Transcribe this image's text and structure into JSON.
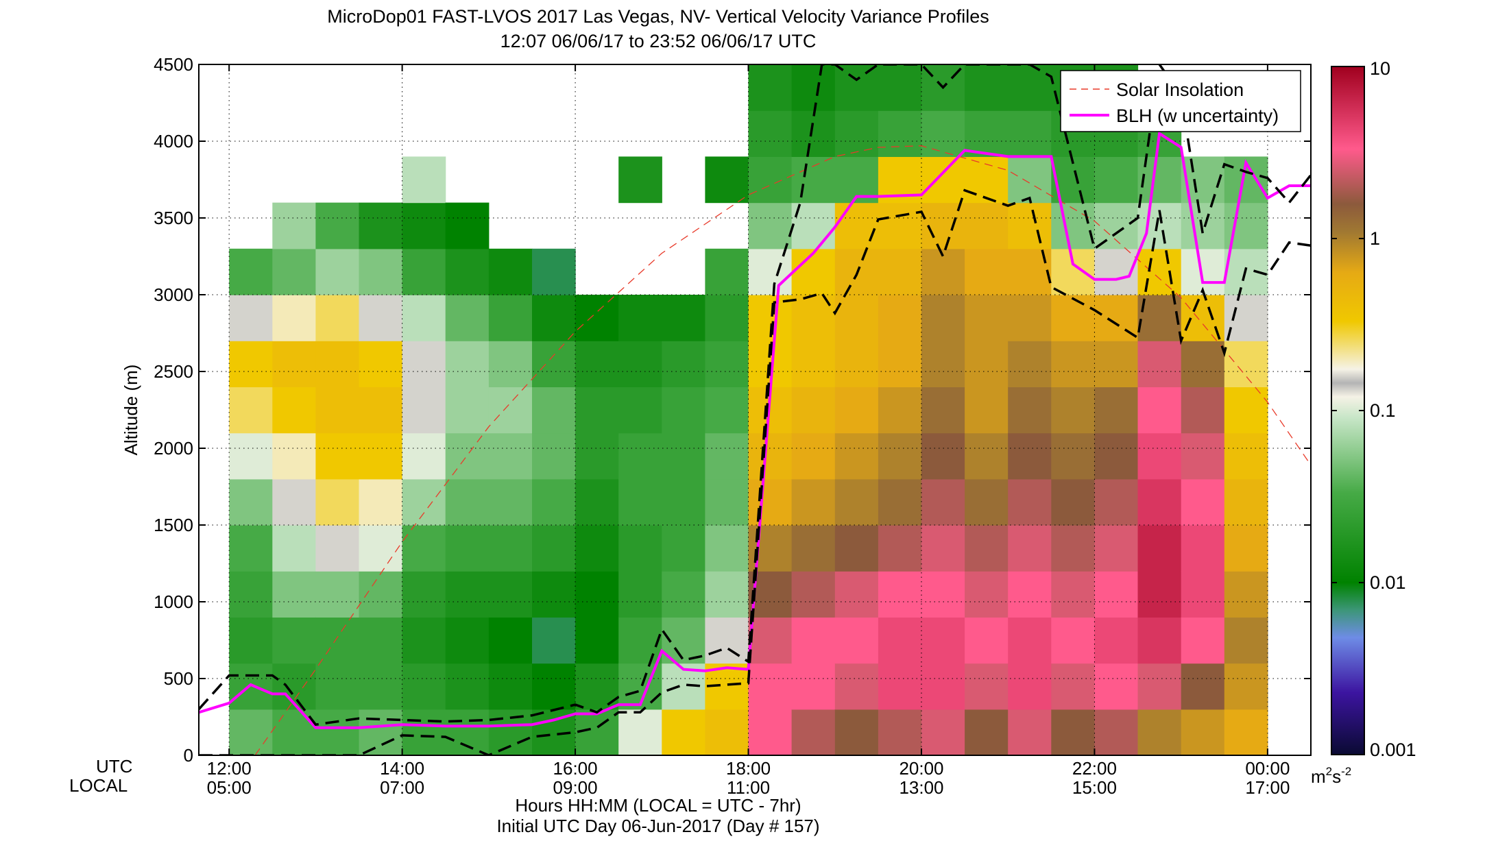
{
  "title": {
    "line1": "MicroDop01 FAST-LVOS 2017 Las Vegas, NV- Vertical Velocity Variance Profiles",
    "line2": "12:07 06/06/17 to 23:52 06/06/17  UTC"
  },
  "xaxis": {
    "row_label_utc": "UTC",
    "row_label_local": "LOCAL",
    "label": "Hours HH:MM  (LOCAL = UTC - 7hr)",
    "sublabel": "Initial UTC Day 06-Jun-2017 (Day # 157)"
  },
  "colorbar": {
    "scale": "log",
    "range": [
      0.001,
      10
    ],
    "ticks": [
      "10",
      "1",
      "0.1",
      "0.01",
      "0.001"
    ],
    "unit": "m",
    "unit_sup": "2",
    "unit_s": "s",
    "unit_s_sup": "-2"
  },
  "legend": {
    "placement": "top-right",
    "solar": "Solar Insolation",
    "blh": "BLH (w uncertainty)"
  },
  "chart_data": {
    "type": "heatmap",
    "xlim_utc_hours": [
      11.65,
      24.5
    ],
    "ylim": [
      0,
      4500
    ],
    "ylabel": "Altitude (m)",
    "yticks": [
      "0",
      "500",
      "1000",
      "1500",
      "2000",
      "2500",
      "3000",
      "3500",
      "4000",
      "4500"
    ],
    "xticks_utc": [
      "12:00",
      "14:00",
      "16:00",
      "18:00",
      "20:00",
      "22:00",
      "00:00"
    ],
    "xticks_local": [
      "05:00",
      "07:00",
      "09:00",
      "11:00",
      "13:00",
      "15:00",
      "17:00"
    ],
    "grid": true,
    "log10_variance_profiles": {
      "layers_m": [
        150,
        450,
        750,
        1050,
        1350,
        1650,
        1950,
        2250,
        2550,
        2850,
        3150,
        3450,
        3750,
        4050,
        4350
      ],
      "profiles": [
        {
          "utc": "12:15",
          "values": [
            -1.4,
            -1.6,
            -1.7,
            -1.6,
            -1.5,
            -1.3,
            -1.0,
            -0.6,
            -0.5,
            -0.8,
            -1.5,
            null,
            null,
            null,
            null
          ]
        },
        {
          "utc": "12:45",
          "values": [
            -1.5,
            -1.7,
            -1.6,
            -1.3,
            -1.1,
            -0.9,
            -0.7,
            -0.5,
            -0.4,
            -0.7,
            -1.4,
            -1.2,
            null,
            null,
            null
          ]
        },
        {
          "utc": "13:15",
          "values": [
            -1.5,
            -1.6,
            -1.6,
            -1.3,
            -0.9,
            -0.6,
            -0.5,
            -0.4,
            -0.4,
            -0.6,
            -1.2,
            -1.5,
            null,
            null,
            null
          ]
        },
        {
          "utc": "13:45",
          "values": [
            -1.4,
            -1.6,
            -1.6,
            -1.4,
            -1.0,
            -0.7,
            -0.5,
            -0.4,
            -0.5,
            -0.8,
            -1.3,
            -1.8,
            null,
            null,
            null
          ]
        },
        {
          "utc": "14:15",
          "values": [
            -1.6,
            -1.7,
            -1.8,
            -1.7,
            -1.5,
            -1.2,
            -1.0,
            -0.8,
            -0.8,
            -1.1,
            -1.6,
            -1.9,
            -1.1,
            null,
            null
          ]
        },
        {
          "utc": "14:45",
          "values": [
            -1.6,
            -1.8,
            -1.9,
            -1.8,
            -1.6,
            -1.4,
            -1.3,
            -1.2,
            -1.2,
            -1.4,
            -1.8,
            -2.0,
            null,
            null,
            null
          ]
        },
        {
          "utc": "15:15",
          "values": [
            -1.7,
            -1.9,
            -2.0,
            -1.8,
            -1.6,
            -1.4,
            -1.3,
            -1.2,
            -1.3,
            -1.6,
            -1.9,
            null,
            null,
            null,
            null
          ]
        },
        {
          "utc": "15:45",
          "values": [
            -1.8,
            -2.0,
            -2.1,
            -1.9,
            -1.7,
            -1.5,
            -1.4,
            -1.4,
            -1.6,
            -1.9,
            -2.1,
            null,
            null,
            null,
            null
          ]
        },
        {
          "utc": "16:15",
          "values": [
            -1.6,
            -1.8,
            -2.0,
            -2.0,
            -1.9,
            -1.8,
            -1.7,
            -1.7,
            -1.8,
            -2.0,
            null,
            null,
            null,
            null,
            null
          ]
        },
        {
          "utc": "16:45",
          "values": [
            -1.0,
            -1.5,
            -1.6,
            -1.7,
            -1.7,
            -1.6,
            -1.6,
            -1.7,
            -1.8,
            -1.9,
            null,
            null,
            -1.8,
            null,
            null
          ]
        },
        {
          "utc": "17:15",
          "values": [
            -0.5,
            -1.1,
            -1.4,
            -1.5,
            -1.6,
            -1.6,
            -1.6,
            -1.6,
            -1.7,
            -1.9,
            null,
            null,
            null,
            null,
            null
          ]
        },
        {
          "utc": "17:45",
          "values": [
            -0.4,
            -0.5,
            -0.9,
            -1.2,
            -1.3,
            -1.4,
            -1.4,
            -1.5,
            -1.6,
            -1.7,
            -1.6,
            null,
            -1.9,
            null,
            null
          ]
        },
        {
          "utc": "18:15",
          "values": [
            0.5,
            0.5,
            0.4,
            0.2,
            0.0,
            -0.2,
            -0.3,
            -0.4,
            -0.5,
            -0.5,
            -1.0,
            -1.3,
            -1.6,
            -1.7,
            -1.8
          ]
        },
        {
          "utc": "18:45",
          "values": [
            0.3,
            0.5,
            0.5,
            0.3,
            0.1,
            -0.1,
            -0.2,
            -0.3,
            -0.4,
            -0.4,
            -0.5,
            -1.1,
            -1.5,
            -1.8,
            -1.9
          ]
        },
        {
          "utc": "19:15",
          "values": [
            0.2,
            0.4,
            0.5,
            0.4,
            0.2,
            0.0,
            -0.1,
            -0.2,
            -0.3,
            -0.3,
            -0.3,
            -0.4,
            -1.5,
            -1.7,
            -1.8
          ]
        },
        {
          "utc": "19:45",
          "values": [
            0.3,
            0.6,
            0.6,
            0.5,
            0.3,
            0.1,
            0.0,
            -0.1,
            -0.2,
            -0.2,
            -0.3,
            -0.4,
            -0.5,
            -1.6,
            -1.8
          ]
        },
        {
          "utc": "20:15",
          "values": [
            0.4,
            0.6,
            0.6,
            0.5,
            0.4,
            0.3,
            0.2,
            0.1,
            0.0,
            0.0,
            -0.1,
            -0.3,
            -0.5,
            -1.5,
            -1.7
          ]
        },
        {
          "utc": "20:45",
          "values": [
            0.2,
            0.4,
            0.5,
            0.4,
            0.3,
            0.1,
            0.0,
            -0.1,
            -0.1,
            -0.1,
            -0.2,
            -0.3,
            -0.5,
            -1.6,
            -1.8
          ]
        },
        {
          "utc": "21:15",
          "values": [
            0.4,
            0.6,
            0.6,
            0.5,
            0.4,
            0.3,
            0.2,
            0.1,
            0.0,
            -0.1,
            -0.2,
            -0.4,
            -1.3,
            -1.6,
            -1.8
          ]
        },
        {
          "utc": "21:45",
          "values": [
            0.2,
            0.4,
            0.5,
            0.4,
            0.3,
            0.2,
            0.1,
            0.0,
            -0.1,
            -0.2,
            -0.6,
            -1.3,
            -1.6,
            -1.7,
            -1.8
          ]
        },
        {
          "utc": "22:15",
          "values": [
            0.3,
            0.5,
            0.6,
            0.5,
            0.4,
            0.3,
            0.2,
            0.1,
            -0.1,
            -0.2,
            -0.9,
            -1.2,
            -1.5,
            -1.7,
            -1.8
          ]
        },
        {
          "utc": "22:45",
          "values": [
            0.0,
            0.4,
            0.7,
            0.8,
            0.8,
            0.7,
            0.6,
            0.5,
            0.4,
            0.1,
            -0.5,
            -1.1,
            -1.4,
            -1.6,
            null
          ]
        },
        {
          "utc": "23:15",
          "values": [
            -0.1,
            0.2,
            0.5,
            0.6,
            0.6,
            0.5,
            0.4,
            0.3,
            0.1,
            -0.4,
            -1.0,
            -1.2,
            -1.3,
            null,
            null
          ]
        },
        {
          "utc": "23:45",
          "values": [
            -0.2,
            -0.1,
            0.0,
            -0.1,
            -0.2,
            -0.3,
            -0.4,
            -0.5,
            -0.6,
            -0.8,
            -1.1,
            -1.3,
            -1.4,
            null,
            null
          ]
        }
      ]
    },
    "series": [
      {
        "name": "Solar Insolation",
        "color": "#e83a2a",
        "style": "dashed",
        "x_utc_hours": [
          12.3,
          13.0,
          14.0,
          15.0,
          16.0,
          17.0,
          18.0,
          19.0,
          19.5,
          20.0,
          21.0,
          22.0,
          23.0,
          24.0,
          24.5
        ],
        "y": [
          0,
          560,
          1390,
          2140,
          2760,
          3270,
          3650,
          3900,
          3960,
          3970,
          3810,
          3480,
          2980,
          2300,
          1890
        ]
      },
      {
        "name": "BLH (w uncertainty)",
        "color": "#ff00ff",
        "x_utc_hours": [
          11.65,
          12.0,
          12.25,
          12.5,
          12.65,
          13.0,
          13.5,
          14.0,
          14.5,
          15.0,
          15.5,
          15.75,
          16.0,
          16.25,
          16.5,
          16.75,
          17.0,
          17.25,
          17.5,
          17.75,
          18.0,
          18.35,
          18.75,
          19.0,
          19.25,
          19.5,
          20.0,
          20.5,
          21.0,
          21.5,
          21.75,
          22.0,
          22.25,
          22.4,
          22.6,
          22.75,
          23.0,
          23.25,
          23.5,
          23.75,
          24.0,
          24.25,
          24.5
        ],
        "y": [
          280,
          340,
          460,
          400,
          400,
          180,
          180,
          200,
          190,
          190,
          200,
          230,
          270,
          270,
          330,
          330,
          680,
          560,
          550,
          570,
          560,
          3060,
          3270,
          3440,
          3640,
          3640,
          3650,
          3940,
          3900,
          3900,
          3200,
          3100,
          3100,
          3120,
          3400,
          4050,
          3960,
          3080,
          3080,
          3860,
          3630,
          3710,
          3710
        ]
      },
      {
        "name": "",
        "role": "upper-uncertainty",
        "color": "#000000",
        "style": "dashed",
        "x_utc_hours": [
          11.65,
          12.0,
          12.5,
          12.65,
          13.0,
          13.5,
          14.0,
          14.5,
          15.0,
          15.5,
          16.0,
          16.25,
          16.5,
          16.75,
          17.0,
          17.25,
          17.5,
          17.75,
          18.0,
          18.3,
          18.6,
          18.85,
          19.0,
          19.25,
          19.5,
          20.0,
          20.25,
          20.5,
          21.0,
          21.25,
          21.5,
          22.0,
          22.5,
          22.75,
          23.0,
          23.25,
          23.5,
          23.75,
          24.0,
          24.25,
          24.5
        ],
        "y": [
          300,
          520,
          520,
          460,
          200,
          240,
          230,
          220,
          230,
          260,
          330,
          280,
          380,
          420,
          820,
          620,
          650,
          700,
          610,
          3070,
          3600,
          4500,
          4500,
          4400,
          4500,
          4500,
          4350,
          4500,
          4500,
          4500,
          4420,
          3300,
          3500,
          4500,
          4300,
          3400,
          3850,
          3800,
          3760,
          3600,
          3780
        ]
      },
      {
        "name": "",
        "role": "lower-uncertainty",
        "color": "#000000",
        "style": "dashed",
        "x_utc_hours": [
          11.65,
          12.0,
          12.5,
          12.65,
          13.0,
          13.5,
          14.0,
          14.5,
          15.0,
          15.5,
          16.0,
          16.25,
          16.5,
          16.75,
          17.0,
          17.25,
          17.5,
          17.75,
          18.0,
          18.3,
          18.6,
          18.85,
          19.0,
          19.25,
          19.5,
          20.0,
          20.25,
          20.5,
          21.0,
          21.25,
          21.5,
          22.0,
          22.5,
          22.75,
          23.0,
          23.25,
          23.5,
          23.75,
          24.0,
          24.25,
          24.5
        ],
        "y": [
          0,
          0,
          0,
          0,
          0,
          0,
          130,
          120,
          0,
          120,
          150,
          180,
          280,
          280,
          410,
          460,
          450,
          460,
          470,
          2950,
          2970,
          3010,
          2880,
          3130,
          3490,
          3540,
          3250,
          3680,
          3580,
          3630,
          3050,
          2900,
          2720,
          3550,
          2700,
          3030,
          2620,
          3170,
          3130,
          3340,
          3320
        ]
      }
    ]
  }
}
